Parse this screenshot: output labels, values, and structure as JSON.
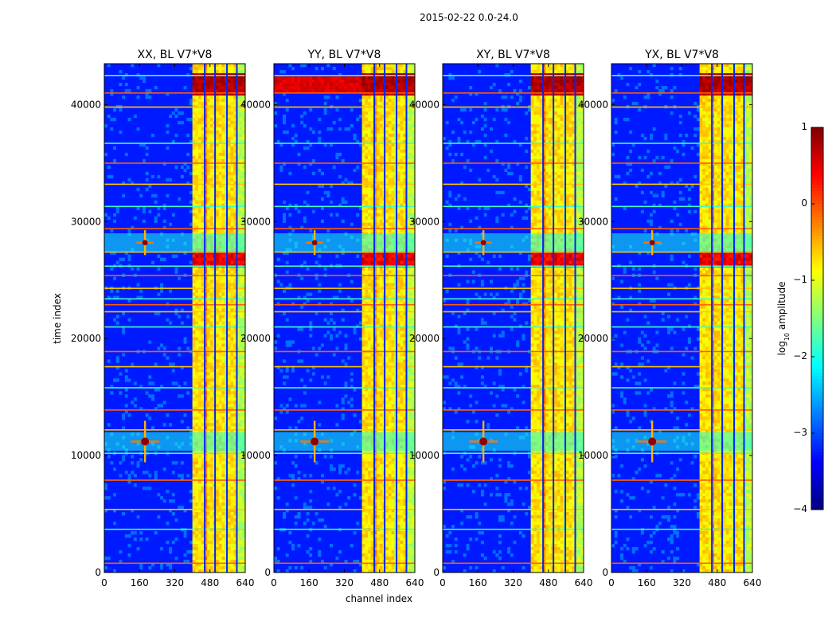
{
  "chart_data": {
    "type": "heatmap",
    "title": "2015-02-22 0.0-24.0",
    "xlabel": "channel index",
    "ylabel": "time index",
    "xlim": [
      0,
      640
    ],
    "ylim": [
      0,
      43500
    ],
    "xticks": [
      0,
      160,
      320,
      480,
      640
    ],
    "yticks": [
      0,
      10000,
      20000,
      30000,
      40000
    ],
    "panels": [
      {
        "title": "XX, BL V7*V8"
      },
      {
        "title": "YY, BL V7*V8"
      },
      {
        "title": "XY, BL V7*V8"
      },
      {
        "title": "YX, BL V7*V8"
      }
    ],
    "colorbar": {
      "label": "log10 amplitude",
      "label_base": "log",
      "label_sub": "10",
      "label_tail": " amplitude",
      "range": [
        -4,
        1
      ],
      "ticks": [
        1,
        0,
        -1,
        -2,
        -3,
        -4
      ],
      "tick_labels": [
        "1",
        "0",
        "−1",
        "−2",
        "−3",
        "−4"
      ],
      "colormap": "jet"
    },
    "features": {
      "rfi_band_channels": [
        405,
        640
      ],
      "strong_rfi_channels": [
        [
          405,
          460
        ],
        [
          460,
          500
        ],
        [
          510,
          550
        ],
        [
          565,
          600
        ]
      ],
      "burst_times": [
        11200,
        28200
      ],
      "burst_channel": 185,
      "hot_time_rows": [
        41700,
        26700,
        11100
      ],
      "flagged_time_rows": [
        800,
        3700,
        5400,
        7900,
        10200,
        12200,
        13900,
        15800,
        17600,
        18900,
        21000,
        22300,
        22900,
        23400,
        24300,
        25400,
        26200,
        27400,
        29400,
        31300,
        33200,
        35000,
        36700,
        39800,
        41000,
        42500
      ]
    }
  }
}
